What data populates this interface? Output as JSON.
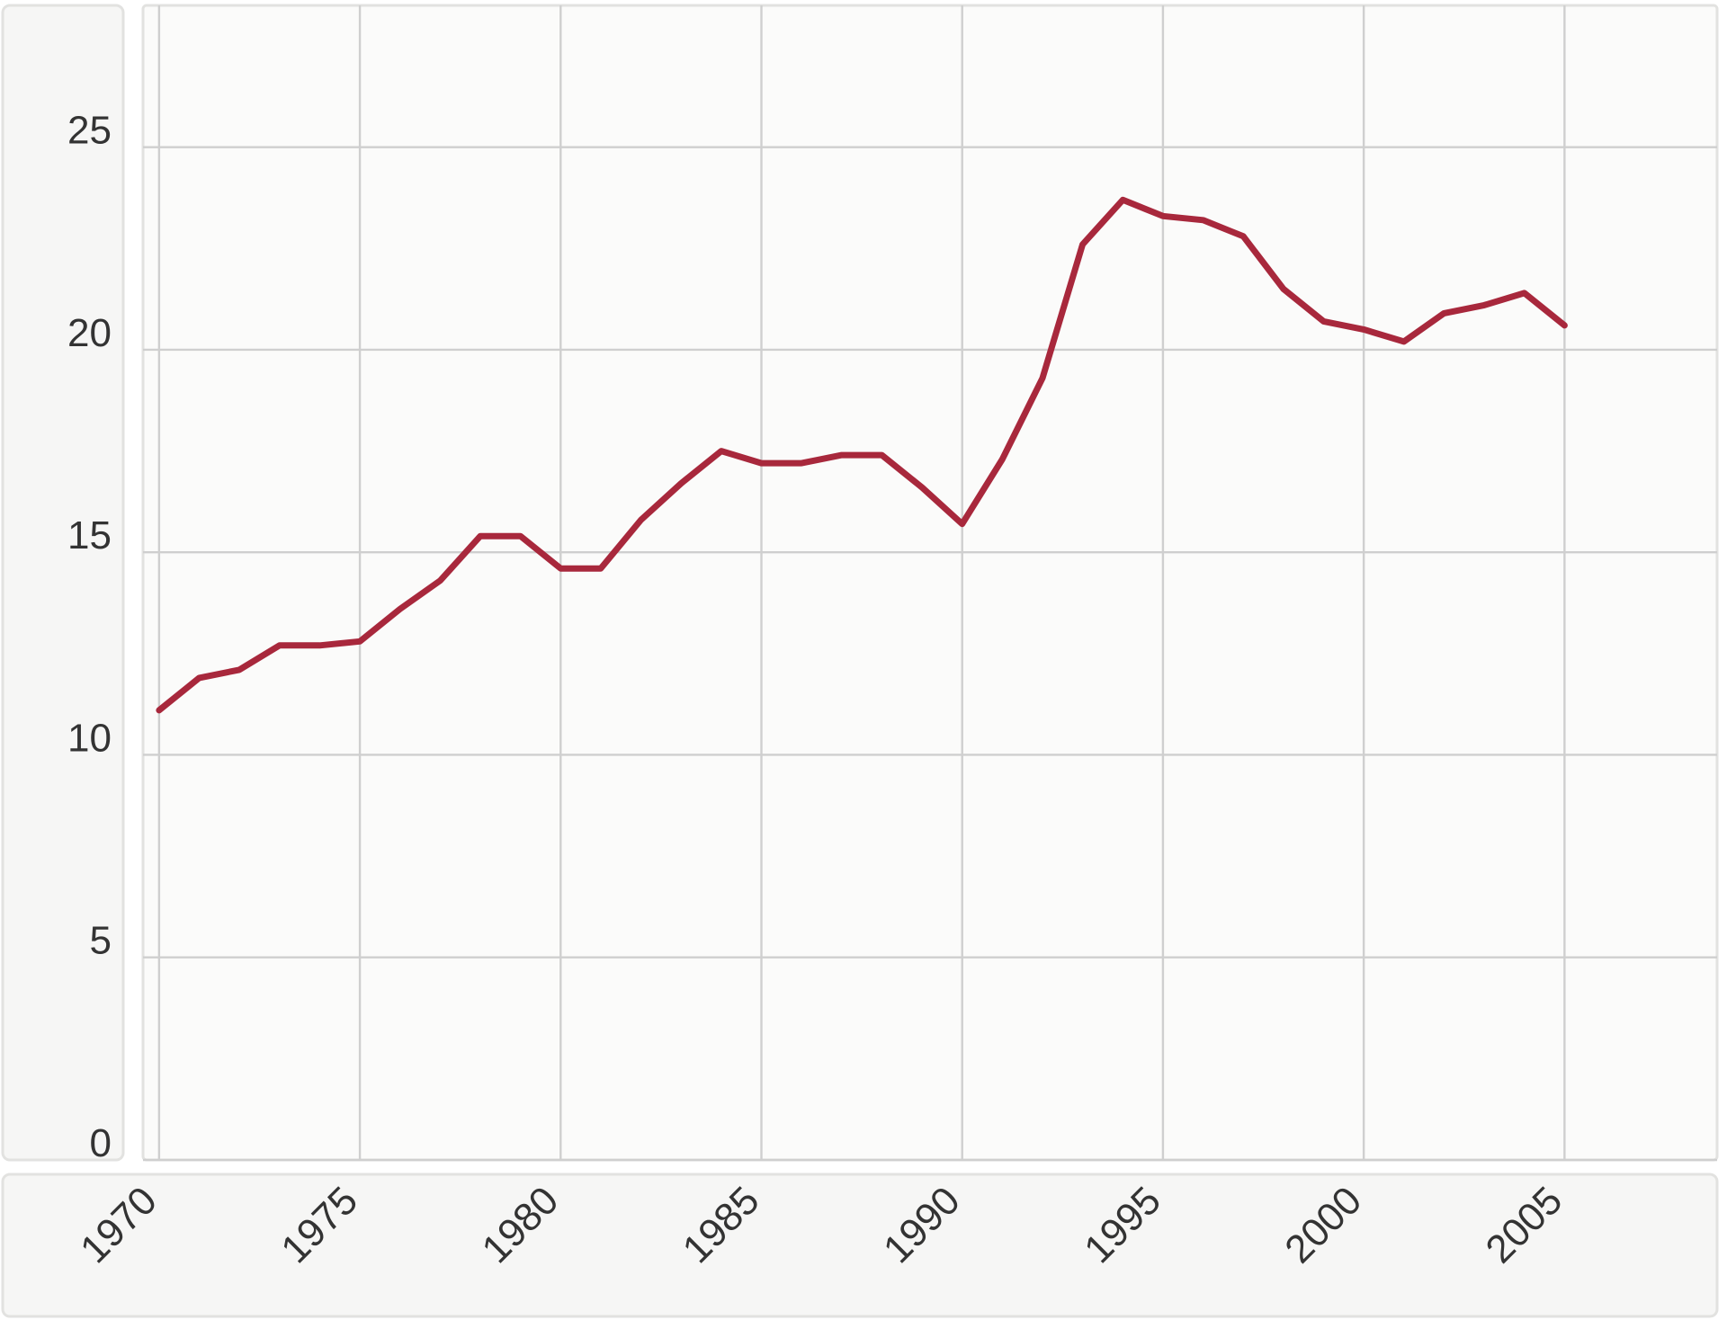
{
  "chart_data": {
    "type": "line",
    "title": "",
    "xlabel": "",
    "ylabel": "",
    "x_tick_labels": [
      "1970",
      "1975",
      "1980",
      "1985",
      "1990",
      "1995",
      "2000",
      "2005"
    ],
    "y_tick_labels": [
      "0",
      "5",
      "10",
      "15",
      "20",
      "25"
    ],
    "xlim": [
      1969.6,
      2008.8
    ],
    "ylim": [
      0,
      28.5
    ],
    "grid": true,
    "legend": "none",
    "x": [
      1970,
      1971,
      1972,
      1973,
      1974,
      1975,
      1976,
      1977,
      1978,
      1979,
      1980,
      1981,
      1982,
      1983,
      1984,
      1985,
      1986,
      1987,
      1988,
      1989,
      1990,
      1991,
      1992,
      1993,
      1994,
      1995,
      1996,
      1997,
      1998,
      1999,
      2000,
      2001,
      2002,
      2003,
      2004,
      2005
    ],
    "series": [
      {
        "color": "#a8283c",
        "values": [
          11.1,
          11.9,
          12.1,
          12.7,
          12.7,
          12.8,
          13.6,
          14.3,
          15.4,
          15.4,
          14.6,
          14.6,
          15.8,
          16.7,
          17.5,
          17.2,
          17.2,
          17.4,
          17.4,
          16.6,
          15.7,
          17.3,
          19.3,
          22.6,
          23.7,
          23.3,
          23.2,
          22.8,
          21.5,
          20.7,
          20.5,
          20.2,
          20.9,
          21.1,
          21.4,
          20.6
        ]
      }
    ]
  }
}
